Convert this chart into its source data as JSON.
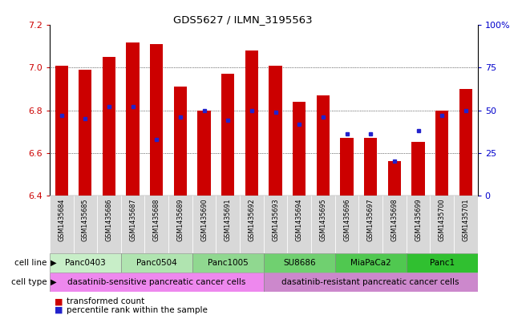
{
  "title": "GDS5627 / ILMN_3195563",
  "samples": [
    "GSM1435684",
    "GSM1435685",
    "GSM1435686",
    "GSM1435687",
    "GSM1435688",
    "GSM1435689",
    "GSM1435690",
    "GSM1435691",
    "GSM1435692",
    "GSM1435693",
    "GSM1435694",
    "GSM1435695",
    "GSM1435696",
    "GSM1435697",
    "GSM1435698",
    "GSM1435699",
    "GSM1435700",
    "GSM1435701"
  ],
  "bar_heights": [
    7.01,
    6.99,
    7.05,
    7.12,
    7.11,
    6.91,
    6.8,
    6.97,
    7.08,
    7.01,
    6.84,
    6.87,
    6.67,
    6.67,
    6.56,
    6.65,
    6.8,
    6.9
  ],
  "percentile_values": [
    47,
    45,
    52,
    52,
    33,
    46,
    50,
    44,
    50,
    49,
    42,
    46,
    36,
    36,
    20,
    38,
    47,
    50
  ],
  "ylim_left": [
    6.4,
    7.2
  ],
  "ylim_right": [
    0,
    100
  ],
  "yticks_left": [
    6.4,
    6.6,
    6.8,
    7.0,
    7.2
  ],
  "yticks_right": [
    0,
    25,
    50,
    75,
    100
  ],
  "ytick_labels_right": [
    "0",
    "25",
    "50",
    "75",
    "100%"
  ],
  "bar_color": "#cc0000",
  "dot_color": "#2222cc",
  "cell_lines": [
    {
      "name": "Panc0403",
      "start": 0,
      "end": 2
    },
    {
      "name": "Panc0504",
      "start": 3,
      "end": 5
    },
    {
      "name": "Panc1005",
      "start": 6,
      "end": 8
    },
    {
      "name": "SU8686",
      "start": 9,
      "end": 11
    },
    {
      "name": "MiaPaCa2",
      "start": 12,
      "end": 14
    },
    {
      "name": "Panc1",
      "start": 15,
      "end": 17
    }
  ],
  "cell_line_colors": [
    "#c8eec8",
    "#b0e4b0",
    "#90d890",
    "#70d070",
    "#50c850",
    "#30c030"
  ],
  "cell_types": [
    {
      "name": "dasatinib-sensitive pancreatic cancer cells",
      "start": 0,
      "end": 8
    },
    {
      "name": "dasatinib-resistant pancreatic cancer cells",
      "start": 9,
      "end": 17
    }
  ],
  "cell_type_colors": [
    "#ee88ee",
    "#cc88cc"
  ],
  "legend_bar_label": "transformed count",
  "legend_dot_label": "percentile rank within the sample",
  "cell_line_label": "cell line",
  "cell_type_label": "cell type",
  "label_color_left": "#cc0000",
  "label_color_right": "#0000cc",
  "sample_bg_color": "#d8d8d8",
  "bar_width": 0.55
}
